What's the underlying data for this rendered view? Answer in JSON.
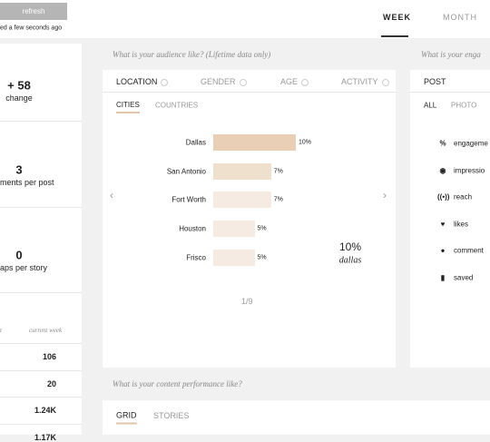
{
  "topbar": {
    "refresh": "refresh",
    "updated": "ed a few seconds ago",
    "tabs": [
      "WEEK",
      "MONTH"
    ]
  },
  "sidebar": {
    "stats": [
      {
        "value": "+ 58",
        "label": "change"
      },
      {
        "value": "3",
        "label": "ments per post"
      },
      {
        "value": "0",
        "label": "aps per story"
      }
    ],
    "table": {
      "headers": [
        "t",
        "current week"
      ],
      "rows": [
        "106",
        "20",
        "1.24K",
        "1.17K"
      ]
    }
  },
  "audience": {
    "heading": "What is your audience like? (Lifetime data only)",
    "tabs": [
      "LOCATION",
      "GENDER",
      "AGE",
      "ACTIVITY"
    ],
    "subtabs": [
      "CITIES",
      "COUNTRIES"
    ],
    "cities_chart": {
      "type": "bar",
      "categories": [
        "Dallas",
        "San Antonio",
        "Fort Worth",
        "Houston",
        "Frisco"
      ],
      "values": [
        10,
        7,
        7,
        5,
        5
      ],
      "value_labels": [
        "10%",
        "7%",
        "7%",
        "5%",
        "5%"
      ]
    },
    "highlight": {
      "value": "10%",
      "label": "dallas"
    },
    "pager": "1/9"
  },
  "engagement": {
    "heading": "What is your enga",
    "tab": "POST",
    "subtabs": [
      "ALL",
      "PHOTO"
    ],
    "metrics": [
      "engageme",
      "impressio",
      "reach",
      "likes",
      "comment",
      "saved"
    ]
  },
  "content": {
    "heading": "What is your content performance like?",
    "tabs": [
      "GRID",
      "STORIES"
    ]
  }
}
